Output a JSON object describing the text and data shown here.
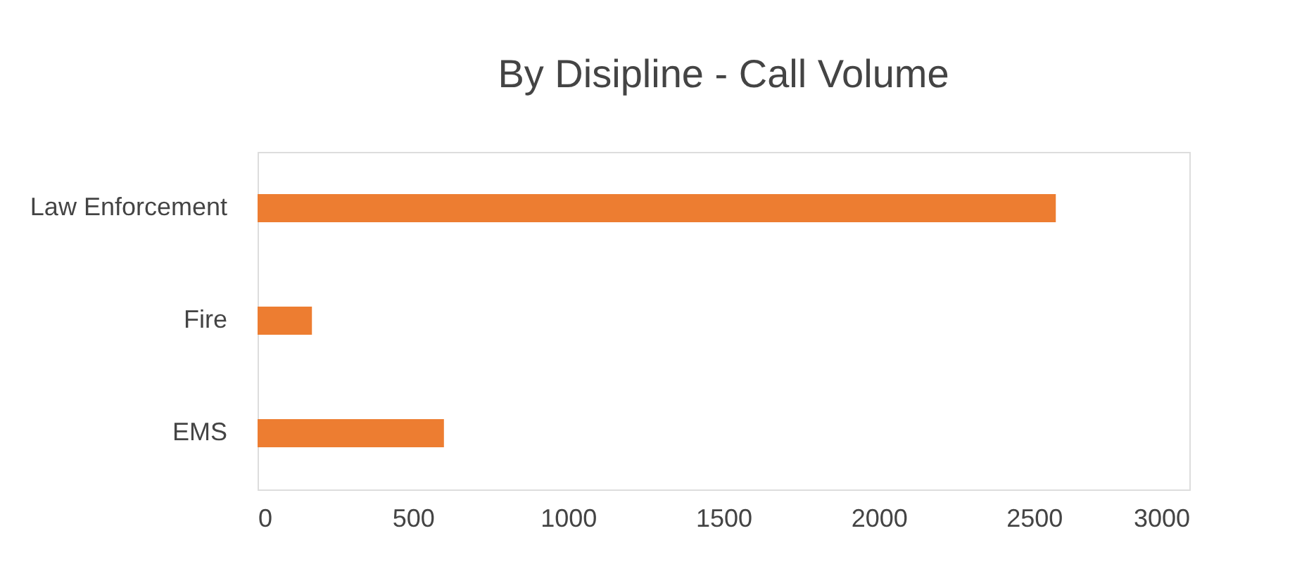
{
  "chart_data": {
    "type": "bar",
    "orientation": "horizontal",
    "title": "By Disipline - Call Volume",
    "categories": [
      "Law Enforcement",
      "Fire",
      "EMS"
    ],
    "values": [
      2570,
      175,
      600
    ],
    "color": "#ed7d31",
    "xlim": [
      0,
      3000
    ],
    "xticks": [
      0,
      500,
      1000,
      1500,
      2000,
      2500,
      3000
    ],
    "grid": false
  }
}
